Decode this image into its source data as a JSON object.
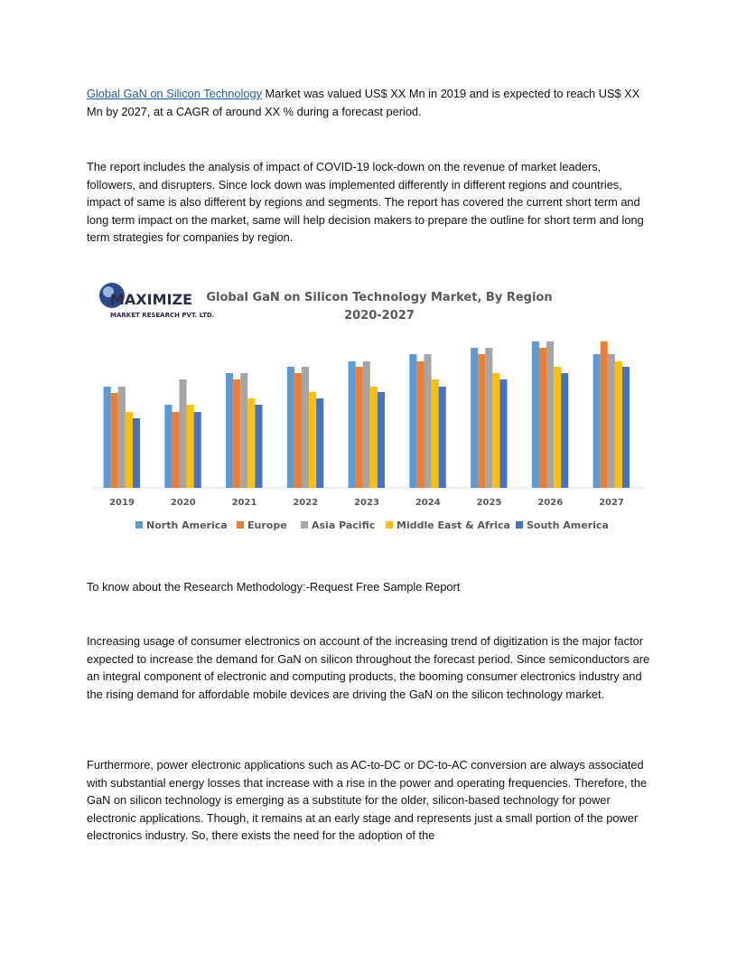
{
  "paragraphs": [
    {
      "link": "Global GaN on Silicon Technology",
      "text": " Market was valued US$ XX Mn in 2019 and is expected to reach US$ XX Mn by 2027, at a CAGR of around XX % during a forecast period."
    },
    {
      "text": "The report includes the analysis of impact of COVID-19 lock-down on the revenue of market leaders, followers, and disrupters. Since lock down was implemented differently in different regions and countries, impact of same is also different by regions and segments. The report has covered the current short term and long term impact on the market, same will help decision makers to prepare the outline for short term and long term strategies for companies by region."
    },
    {
      "text": "To know about the Research Methodology:-Request Free Sample Report"
    },
    {
      "text": "Increasing usage of consumer electronics on account of the increasing trend of digitization is the major factor expected to increase the demand for GaN on silicon throughout the forecast period. Since semiconductors are an integral component of electronic and computing products, the booming consumer electronics industry and the rising demand for affordable mobile devices are driving the GaN on the silicon technology market."
    },
    {
      "text": "Furthermore, power electronic applications such as AC-to-DC or DC-to-AC conversion are always associated with substantial energy losses that increase with a rise in the power and operating frequencies. Therefore, the GaN on silicon technology is emerging as a substitute for the older, silicon-based technology for power electronic applications. Though, it remains at an early stage and represents just a small portion of the power electronics industry. So, there exists the need for the adoption of the"
    }
  ],
  "logo": {
    "name": "MAXIMIZE",
    "sub": "MARKET RESEARCH PVT. LTD."
  },
  "chart_data": {
    "type": "bar",
    "title": [
      "Global GaN on Silicon Technology Market, By Region",
      "2020-2027"
    ],
    "categories": [
      "2019",
      "2020",
      "2021",
      "2022",
      "2023",
      "2024",
      "2025",
      "2026",
      "2027"
    ],
    "series": [
      {
        "name": "North America",
        "color": "#5b9bd5",
        "values": [
          112,
          92,
          127,
          134,
          140,
          148,
          155,
          162,
          148
        ]
      },
      {
        "name": "Europe",
        "color": "#ed7d31",
        "values": [
          105,
          84,
          120,
          127,
          134,
          140,
          148,
          155,
          162
        ]
      },
      {
        "name": "Asia Pacific",
        "color": "#a5a5a5",
        "values": [
          112,
          120,
          127,
          134,
          140,
          148,
          155,
          162,
          148
        ]
      },
      {
        "name": "Middle East & Africa",
        "color": "#ffc000",
        "values": [
          84,
          92,
          99,
          106,
          112,
          120,
          127,
          134,
          140
        ]
      },
      {
        "name": "South America",
        "color": "#4472c4",
        "values": [
          77,
          84,
          92,
          99,
          106,
          112,
          120,
          127,
          134
        ]
      }
    ],
    "ylim": [
      0,
      170
    ]
  }
}
